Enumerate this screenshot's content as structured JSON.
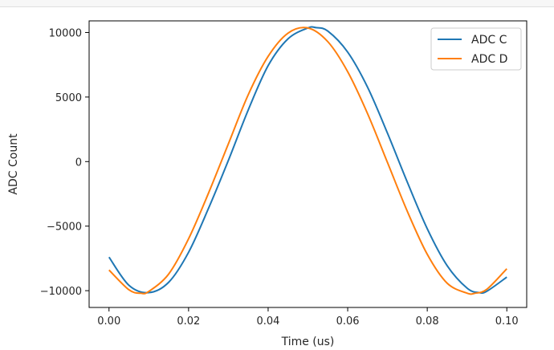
{
  "chart_data": {
    "type": "line",
    "xlabel": "Time (us)",
    "ylabel": "ADC Count",
    "xlim": [
      -0.005,
      0.105
    ],
    "ylim": [
      -11300,
      10900
    ],
    "xticks": [
      0.0,
      0.02,
      0.04,
      0.06,
      0.08,
      0.1
    ],
    "xtick_labels": [
      "0.00",
      "0.02",
      "0.04",
      "0.06",
      "0.08",
      "0.10"
    ],
    "yticks": [
      -10000,
      -5000,
      0,
      5000,
      10000
    ],
    "ytick_labels": [
      "−10000",
      "−5000",
      "0",
      "5000",
      "10000"
    ],
    "grid": false,
    "legend_position": "top-right",
    "series": [
      {
        "name": "ADC C",
        "color": "#1f77b4",
        "x": [
          0.0,
          0.005,
          0.01,
          0.015,
          0.02,
          0.025,
          0.03,
          0.035,
          0.04,
          0.045,
          0.05,
          0.052,
          0.055,
          0.06,
          0.065,
          0.07,
          0.075,
          0.08,
          0.085,
          0.09,
          0.093,
          0.095,
          0.1
        ],
        "values": [
          -7400,
          -9580,
          -10150,
          -9350,
          -7030,
          -3630,
          90,
          4000,
          7430,
          9510,
          10350,
          10380,
          10110,
          8480,
          5760,
          2200,
          -1600,
          -5200,
          -8060,
          -9800,
          -10150,
          -10040,
          -8950
        ]
      },
      {
        "name": "ADC D",
        "color": "#ff7f0e",
        "x": [
          0.0,
          0.005,
          0.008,
          0.01,
          0.015,
          0.02,
          0.025,
          0.03,
          0.035,
          0.04,
          0.045,
          0.05,
          0.055,
          0.06,
          0.065,
          0.07,
          0.075,
          0.08,
          0.085,
          0.09,
          0.092,
          0.095,
          0.1
        ],
        "values": [
          -8400,
          -9930,
          -10200,
          -10060,
          -8710,
          -5980,
          -2450,
          1370,
          5180,
          8150,
          9950,
          10350,
          9290,
          6960,
          3710,
          -70,
          -3860,
          -7180,
          -9420,
          -10190,
          -10200,
          -9890,
          -8300
        ]
      }
    ]
  }
}
